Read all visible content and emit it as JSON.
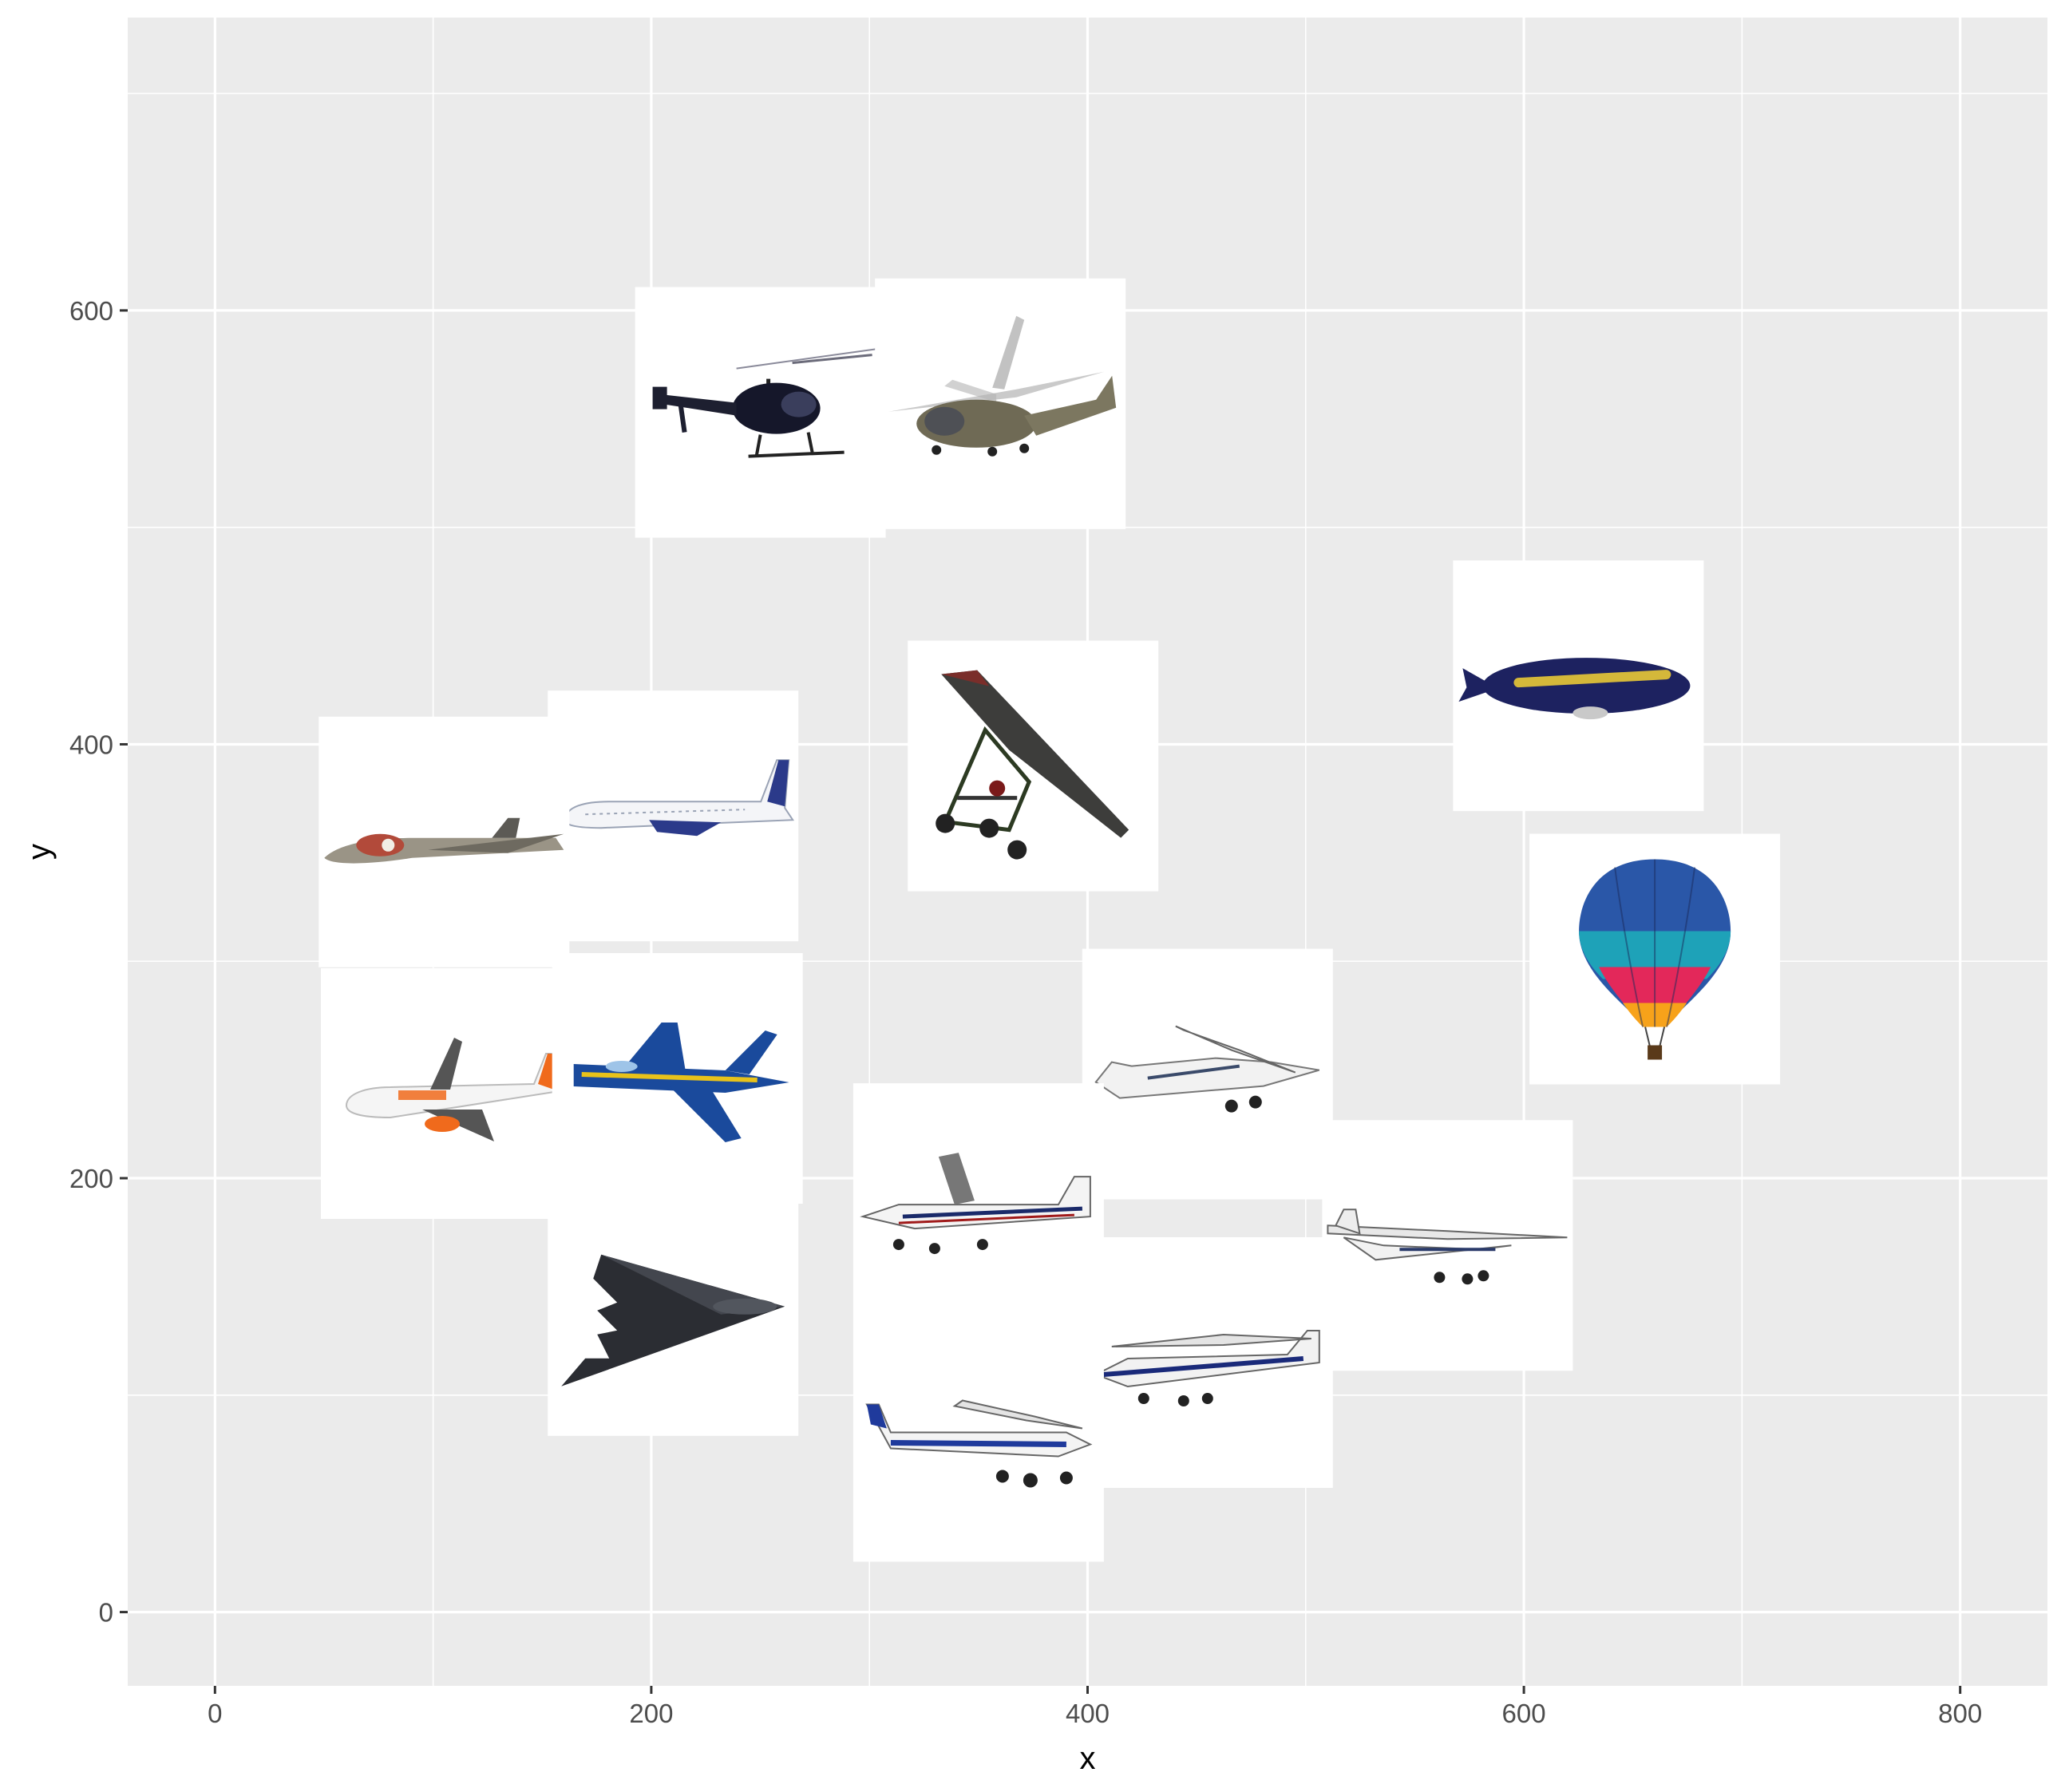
{
  "chart_data": {
    "type": "scatter",
    "title": "",
    "xlabel": "x",
    "ylabel": "y",
    "xlim": [
      -40,
      840
    ],
    "ylim": [
      -34,
      735
    ],
    "x_ticks": [
      "0",
      "200",
      "400",
      "600",
      "800"
    ],
    "y_ticks": [
      "0",
      "200",
      "400",
      "600"
    ],
    "grid": true,
    "panel_color": "#ebebeb",
    "grid_color": "#ffffff",
    "legend": "none",
    "points": [
      {
        "icon": "helicopter-dark-icon",
        "x": 250,
        "y": 553
      },
      {
        "icon": "helicopter-camo-icon",
        "x": 360,
        "y": 557
      },
      {
        "icon": "airship-goodyear-icon",
        "x": 625,
        "y": 427
      },
      {
        "icon": "hang-glider-trike-icon",
        "x": 375,
        "y": 390
      },
      {
        "icon": "airliner-icon",
        "x": 210,
        "y": 367
      },
      {
        "icon": "vintage-jet-icon",
        "x": 105,
        "y": 355
      },
      {
        "icon": "hot-air-balloon-icon",
        "x": 660,
        "y": 301
      },
      {
        "icon": "easyjet-airliner-icon",
        "x": 106,
        "y": 239
      },
      {
        "icon": "fighter-jet-icon",
        "x": 212,
        "y": 246
      },
      {
        "icon": "cessna-g-jmke-icon",
        "x": 455,
        "y": 248
      },
      {
        "icon": "cessna-d-eowi-icon",
        "x": 350,
        "y": 186
      },
      {
        "icon": "cessna-high-wing-icon",
        "x": 565,
        "y": 169
      },
      {
        "icon": "stealth-bomber-icon",
        "x": 210,
        "y": 139
      },
      {
        "icon": "cessna-blue-stripe-icon",
        "x": 455,
        "y": 115
      },
      {
        "icon": "cessna-s2-aex-icon",
        "x": 350,
        "y": 81
      }
    ]
  }
}
